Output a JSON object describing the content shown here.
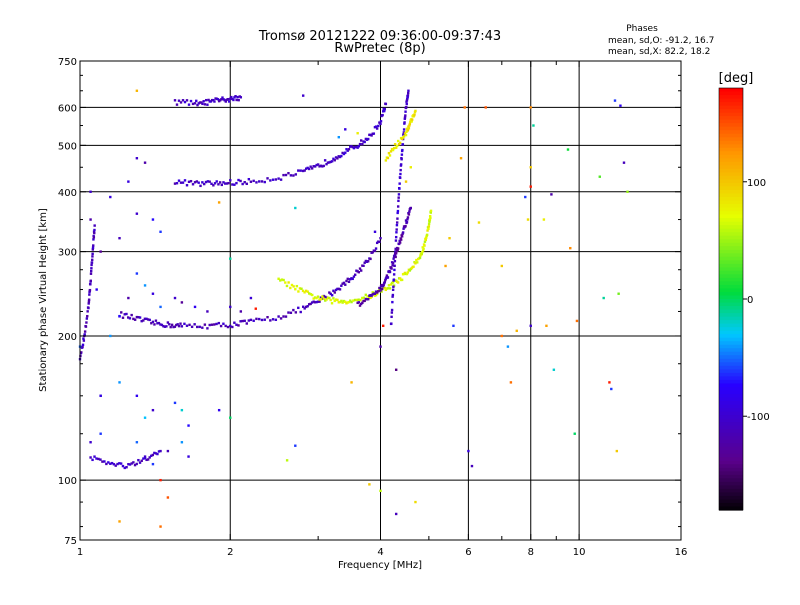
{
  "chart_data": {
    "type": "scatter",
    "title": "Tromsø 20121222 09:36:00-09:37:43",
    "subtitle": "RwPretec (8p)",
    "stats": {
      "heading": "Phases",
      "line1": "mean, sd,O: -91.2, 16.7",
      "line2": "mean, sd,X:  82.2, 18.2"
    },
    "xlabel": "Frequency [MHz]",
    "ylabel": "Stationary phase Virtual Height [km]",
    "x_scale": "log",
    "y_scale": "log",
    "xlim": [
      1,
      16
    ],
    "ylim": [
      75,
      750
    ],
    "grid": true,
    "xticks": [
      {
        "v": 1,
        "label": "1"
      },
      {
        "v": 2,
        "label": "2"
      },
      {
        "v": 4,
        "label": "4"
      },
      {
        "v": 6,
        "label": "6"
      },
      {
        "v": 8,
        "label": "8"
      },
      {
        "v": 10,
        "label": "10"
      },
      {
        "v": 16,
        "label": "16"
      }
    ],
    "x_gridlines": [
      2,
      4,
      6,
      8,
      10
    ],
    "x_minor_ticks": [
      3,
      5,
      7,
      9
    ],
    "yticks": [
      {
        "v": 75,
        "label": "75"
      },
      {
        "v": 100,
        "label": "100"
      },
      {
        "v": 200,
        "label": "200"
      },
      {
        "v": 300,
        "label": "300"
      },
      {
        "v": 400,
        "label": "400"
      },
      {
        "v": 500,
        "label": "500"
      },
      {
        "v": 600,
        "label": "600"
      },
      {
        "v": 750,
        "label": "750"
      }
    ],
    "y_gridlines": [
      100,
      200,
      300,
      400,
      500,
      600
    ],
    "colorbar": {
      "label": "[deg]",
      "range": [
        -180,
        180
      ],
      "ticks": [
        {
          "v": 100,
          "label": "100"
        },
        {
          "v": 0,
          "label": "0"
        },
        {
          "v": -100,
          "label": "-100"
        }
      ]
    },
    "traces": [
      {
        "phase": -110,
        "points": [
          [
            1.2,
            222
          ],
          [
            1.3,
            217
          ],
          [
            1.4,
            213
          ],
          [
            1.5,
            211
          ],
          [
            1.6,
            210
          ],
          [
            1.8,
            210
          ],
          [
            2.0,
            211
          ],
          [
            2.2,
            214
          ],
          [
            2.5,
            219
          ],
          [
            2.8,
            228
          ],
          [
            3.0,
            236
          ],
          [
            3.2,
            246
          ],
          [
            3.4,
            258
          ],
          [
            3.6,
            272
          ],
          [
            3.8,
            290
          ],
          [
            4.0,
            320
          ]
        ]
      },
      {
        "phase": -105,
        "points": [
          [
            1.55,
            420
          ],
          [
            1.7,
            416
          ],
          [
            1.85,
            416
          ],
          [
            2.0,
            418
          ],
          [
            2.2,
            420
          ],
          [
            2.5,
            428
          ],
          [
            2.8,
            440
          ],
          [
            3.0,
            452
          ],
          [
            3.2,
            468
          ],
          [
            3.4,
            485
          ],
          [
            3.6,
            500
          ],
          [
            3.8,
            520
          ],
          [
            4.0,
            560
          ],
          [
            4.1,
            610
          ]
        ]
      },
      {
        "phase": 70,
        "points": [
          [
            2.5,
            262
          ],
          [
            2.7,
            252
          ],
          [
            2.9,
            243
          ],
          [
            3.1,
            238
          ],
          [
            3.3,
            236
          ],
          [
            3.5,
            237
          ],
          [
            3.8,
            242
          ],
          [
            4.0,
            248
          ],
          [
            4.2,
            255
          ],
          [
            4.4,
            264
          ],
          [
            4.6,
            276
          ],
          [
            4.8,
            292
          ],
          [
            4.9,
            310
          ],
          [
            5.0,
            340
          ],
          [
            5.05,
            365
          ]
        ]
      },
      {
        "phase": -100,
        "points": [
          [
            4.2,
            210
          ],
          [
            4.25,
            260
          ],
          [
            4.3,
            320
          ],
          [
            4.35,
            390
          ],
          [
            4.4,
            460
          ],
          [
            4.45,
            530
          ],
          [
            4.5,
            600
          ],
          [
            4.55,
            650
          ]
        ]
      },
      {
        "phase": -120,
        "points": [
          [
            3.6,
            232
          ],
          [
            3.8,
            240
          ],
          [
            4.0,
            250
          ],
          [
            4.1,
            262
          ],
          [
            4.2,
            278
          ],
          [
            4.3,
            298
          ],
          [
            4.4,
            320
          ],
          [
            4.5,
            345
          ],
          [
            4.6,
            370
          ]
        ]
      },
      {
        "phase": -105,
        "points": [
          [
            1.05,
            112
          ],
          [
            1.15,
            108
          ],
          [
            1.25,
            107
          ],
          [
            1.35,
            110
          ],
          [
            1.45,
            115
          ]
        ]
      },
      {
        "phase": -110,
        "points": [
          [
            1.0,
            180
          ],
          [
            1.02,
            200
          ],
          [
            1.04,
            230
          ],
          [
            1.05,
            260
          ],
          [
            1.06,
            300
          ],
          [
            1.07,
            340
          ]
        ]
      },
      {
        "phase": 85,
        "points": [
          [
            4.1,
            470
          ],
          [
            4.3,
            500
          ],
          [
            4.5,
            530
          ],
          [
            4.6,
            560
          ],
          [
            4.7,
            590
          ]
        ]
      },
      {
        "phase": -105,
        "points": [
          [
            1.55,
            616
          ],
          [
            1.7,
            612
          ],
          [
            1.8,
            615
          ],
          [
            1.9,
            620
          ],
          [
            2.0,
            625
          ],
          [
            2.1,
            630
          ]
        ]
      }
    ],
    "scatter": [
      {
        "x": 1.3,
        "y": 470,
        "phase": -100
      },
      {
        "x": 1.35,
        "y": 460,
        "phase": -120
      },
      {
        "x": 1.25,
        "y": 420,
        "phase": -90
      },
      {
        "x": 1.4,
        "y": 350,
        "phase": -70
      },
      {
        "x": 1.3,
        "y": 360,
        "phase": -100
      },
      {
        "x": 1.45,
        "y": 330,
        "phase": -60
      },
      {
        "x": 1.2,
        "y": 320,
        "phase": -110
      },
      {
        "x": 1.3,
        "y": 270,
        "phase": -60
      },
      {
        "x": 1.35,
        "y": 255,
        "phase": -40
      },
      {
        "x": 1.4,
        "y": 245,
        "phase": -90
      },
      {
        "x": 1.25,
        "y": 240,
        "phase": -120
      },
      {
        "x": 1.45,
        "y": 230,
        "phase": -50
      },
      {
        "x": 1.55,
        "y": 240,
        "phase": -100
      },
      {
        "x": 1.6,
        "y": 235,
        "phase": -130
      },
      {
        "x": 1.7,
        "y": 230,
        "phase": -80
      },
      {
        "x": 1.8,
        "y": 225,
        "phase": -110
      },
      {
        "x": 2.0,
        "y": 230,
        "phase": -100
      },
      {
        "x": 2.1,
        "y": 225,
        "phase": -120
      },
      {
        "x": 2.2,
        "y": 240,
        "phase": -95
      },
      {
        "x": 2.25,
        "y": 228,
        "phase": 170
      },
      {
        "x": 1.2,
        "y": 220,
        "phase": -70
      },
      {
        "x": 1.15,
        "y": 200,
        "phase": -40
      },
      {
        "x": 1.1,
        "y": 150,
        "phase": -60
      },
      {
        "x": 1.2,
        "y": 160,
        "phase": -40
      },
      {
        "x": 1.3,
        "y": 150,
        "phase": -80
      },
      {
        "x": 1.35,
        "y": 135,
        "phase": -30
      },
      {
        "x": 1.4,
        "y": 140,
        "phase": -100
      },
      {
        "x": 1.55,
        "y": 145,
        "phase": -60
      },
      {
        "x": 1.6,
        "y": 140,
        "phase": -20
      },
      {
        "x": 1.65,
        "y": 130,
        "phase": -70
      },
      {
        "x": 1.6,
        "y": 120,
        "phase": -40
      },
      {
        "x": 1.65,
        "y": 112,
        "phase": -90
      },
      {
        "x": 1.5,
        "y": 115,
        "phase": -110
      },
      {
        "x": 1.3,
        "y": 120,
        "phase": -50
      },
      {
        "x": 1.35,
        "y": 112,
        "phase": -100
      },
      {
        "x": 1.4,
        "y": 108,
        "phase": -60
      },
      {
        "x": 1.1,
        "y": 125,
        "phase": -60
      },
      {
        "x": 1.05,
        "y": 120,
        "phase": -100
      },
      {
        "x": 1.45,
        "y": 100,
        "phase": 170
      },
      {
        "x": 1.5,
        "y": 92,
        "phase": 150
      },
      {
        "x": 1.45,
        "y": 80,
        "phase": 140
      },
      {
        "x": 1.2,
        "y": 82,
        "phase": 120
      },
      {
        "x": 1.1,
        "y": 150,
        "phase": -90
      },
      {
        "x": 1.9,
        "y": 140,
        "phase": -80
      },
      {
        "x": 2.0,
        "y": 135,
        "phase": 0
      },
      {
        "x": 1.15,
        "y": 390,
        "phase": -90
      },
      {
        "x": 1.05,
        "y": 350,
        "phase": -120
      },
      {
        "x": 1.05,
        "y": 400,
        "phase": -100
      },
      {
        "x": 1.1,
        "y": 300,
        "phase": -130
      },
      {
        "x": 1.08,
        "y": 250,
        "phase": -80
      },
      {
        "x": 1.0,
        "y": 190,
        "phase": -50
      },
      {
        "x": 1.3,
        "y": 650,
        "phase": 110
      },
      {
        "x": 1.9,
        "y": 380,
        "phase": 120
      },
      {
        "x": 2.0,
        "y": 290,
        "phase": -10
      },
      {
        "x": 2.6,
        "y": 110,
        "phase": 60
      },
      {
        "x": 2.7,
        "y": 118,
        "phase": -60
      },
      {
        "x": 2.8,
        "y": 635,
        "phase": -100
      },
      {
        "x": 2.7,
        "y": 370,
        "phase": -20
      },
      {
        "x": 3.3,
        "y": 520,
        "phase": -40
      },
      {
        "x": 3.4,
        "y": 540,
        "phase": -90
      },
      {
        "x": 3.6,
        "y": 530,
        "phase": 80
      },
      {
        "x": 3.5,
        "y": 160,
        "phase": 110
      },
      {
        "x": 3.8,
        "y": 98,
        "phase": 100
      },
      {
        "x": 4.0,
        "y": 95,
        "phase": 60
      },
      {
        "x": 3.9,
        "y": 330,
        "phase": -90
      },
      {
        "x": 4.05,
        "y": 210,
        "phase": 170
      },
      {
        "x": 4.0,
        "y": 190,
        "phase": -120
      },
      {
        "x": 4.3,
        "y": 170,
        "phase": -140
      },
      {
        "x": 4.3,
        "y": 85,
        "phase": -110
      },
      {
        "x": 4.7,
        "y": 90,
        "phase": 90
      },
      {
        "x": 4.5,
        "y": 420,
        "phase": 100
      },
      {
        "x": 4.6,
        "y": 450,
        "phase": 80
      },
      {
        "x": 5.5,
        "y": 320,
        "phase": 100
      },
      {
        "x": 5.4,
        "y": 280,
        "phase": 120
      },
      {
        "x": 5.6,
        "y": 210,
        "phase": -60
      },
      {
        "x": 5.8,
        "y": 470,
        "phase": 120
      },
      {
        "x": 5.9,
        "y": 600,
        "phase": 140
      },
      {
        "x": 6.0,
        "y": 115,
        "phase": -90
      },
      {
        "x": 6.1,
        "y": 107,
        "phase": -110
      },
      {
        "x": 6.3,
        "y": 345,
        "phase": 90
      },
      {
        "x": 6.5,
        "y": 600,
        "phase": 150
      },
      {
        "x": 7.0,
        "y": 280,
        "phase": 100
      },
      {
        "x": 7.0,
        "y": 200,
        "phase": 140
      },
      {
        "x": 7.2,
        "y": 190,
        "phase": -40
      },
      {
        "x": 7.3,
        "y": 160,
        "phase": 140
      },
      {
        "x": 7.5,
        "y": 205,
        "phase": 110
      },
      {
        "x": 7.8,
        "y": 390,
        "phase": -60
      },
      {
        "x": 7.9,
        "y": 350,
        "phase": 90
      },
      {
        "x": 8.0,
        "y": 410,
        "phase": 170
      },
      {
        "x": 8.0,
        "y": 450,
        "phase": 100
      },
      {
        "x": 8.1,
        "y": 550,
        "phase": -10
      },
      {
        "x": 8.0,
        "y": 600,
        "phase": 130
      },
      {
        "x": 8.0,
        "y": 210,
        "phase": -100
      },
      {
        "x": 8.5,
        "y": 350,
        "phase": 80
      },
      {
        "x": 8.6,
        "y": 210,
        "phase": 120
      },
      {
        "x": 8.8,
        "y": 395,
        "phase": -120
      },
      {
        "x": 8.9,
        "y": 170,
        "phase": -20
      },
      {
        "x": 9.5,
        "y": 490,
        "phase": 10
      },
      {
        "x": 9.6,
        "y": 305,
        "phase": 130
      },
      {
        "x": 9.8,
        "y": 125,
        "phase": 0
      },
      {
        "x": 9.9,
        "y": 215,
        "phase": 140
      },
      {
        "x": 11.0,
        "y": 430,
        "phase": 30
      },
      {
        "x": 11.2,
        "y": 240,
        "phase": -10
      },
      {
        "x": 11.5,
        "y": 160,
        "phase": 170
      },
      {
        "x": 11.6,
        "y": 155,
        "phase": -60
      },
      {
        "x": 11.8,
        "y": 620,
        "phase": -60
      },
      {
        "x": 11.9,
        "y": 115,
        "phase": 100
      },
      {
        "x": 12.0,
        "y": 245,
        "phase": 40
      },
      {
        "x": 12.3,
        "y": 460,
        "phase": -110
      },
      {
        "x": 12.1,
        "y": 605,
        "phase": -80
      },
      {
        "x": 12.5,
        "y": 400,
        "phase": 50
      }
    ]
  }
}
